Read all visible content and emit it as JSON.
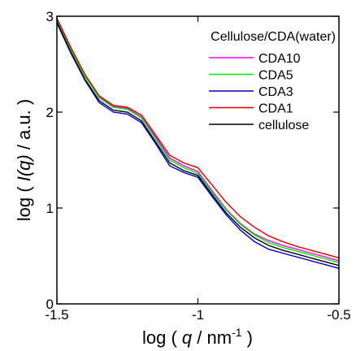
{
  "chart_data": {
    "type": "line",
    "title": "",
    "annotation": "Cellulose/CDA(water)",
    "xlabel": {
      "prefix": "log ( ",
      "var": "q",
      "mid": " / nm",
      "sup": "-1",
      "suffix": " )"
    },
    "ylabel": {
      "prefix": "log ( ",
      "var": "I(q)",
      "suffix": " / a.u. )"
    },
    "xlim": [
      -1.5,
      -0.5
    ],
    "ylim": [
      0,
      3
    ],
    "xticks": [
      -1.5,
      -1,
      -0.5
    ],
    "xtick_labels": [
      "-1.5",
      "-1",
      "-0.5"
    ],
    "yticks": [
      0,
      1,
      2,
      3
    ],
    "ytick_labels": [
      "0",
      "1",
      "2",
      "3"
    ],
    "grid": false,
    "legend_position": "top-right",
    "series": [
      {
        "name": "CDA10",
        "color": "#ff00ff",
        "x": [
          -1.5,
          -1.45,
          -1.4,
          -1.35,
          -1.3,
          -1.25,
          -1.2,
          -1.15,
          -1.1,
          -1.05,
          -1,
          -0.95,
          -0.9,
          -0.85,
          -0.8,
          -0.75,
          -0.7,
          -0.65,
          -0.6,
          -0.55,
          -0.5
        ],
        "y": [
          2.97,
          2.65,
          2.38,
          2.16,
          2.06,
          2.04,
          1.95,
          1.74,
          1.52,
          1.44,
          1.38,
          1.18,
          0.99,
          0.84,
          0.73,
          0.66,
          0.61,
          0.57,
          0.53,
          0.49,
          0.45
        ]
      },
      {
        "name": "CDA5",
        "color": "#00ee00",
        "x": [
          -1.5,
          -1.45,
          -1.4,
          -1.35,
          -1.3,
          -1.25,
          -1.2,
          -1.15,
          -1.1,
          -1.05,
          -1,
          -0.95,
          -0.9,
          -0.85,
          -0.8,
          -0.75,
          -0.7,
          -0.65,
          -0.6,
          -0.55,
          -0.5
        ],
        "y": [
          2.95,
          2.64,
          2.37,
          2.15,
          2.05,
          2.03,
          1.94,
          1.72,
          1.5,
          1.42,
          1.36,
          1.16,
          0.98,
          0.83,
          0.72,
          0.64,
          0.59,
          0.55,
          0.51,
          0.47,
          0.43
        ]
      },
      {
        "name": "CDA3",
        "color": "#0000cc",
        "x": [
          -1.5,
          -1.45,
          -1.4,
          -1.35,
          -1.3,
          -1.25,
          -1.2,
          -1.15,
          -1.1,
          -1.05,
          -1,
          -0.95,
          -0.9,
          -0.85,
          -0.8,
          -0.75,
          -0.7,
          -0.65,
          -0.6,
          -0.55,
          -0.5
        ],
        "y": [
          2.93,
          2.61,
          2.33,
          2.1,
          2.0,
          1.98,
          1.89,
          1.67,
          1.44,
          1.37,
          1.32,
          1.12,
          0.93,
          0.77,
          0.65,
          0.57,
          0.53,
          0.49,
          0.45,
          0.41,
          0.37
        ]
      },
      {
        "name": "CDA1",
        "color": "#dd0000",
        "x": [
          -1.5,
          -1.45,
          -1.4,
          -1.35,
          -1.3,
          -1.25,
          -1.2,
          -1.15,
          -1.1,
          -1.05,
          -1,
          -0.95,
          -0.9,
          -0.85,
          -0.8,
          -0.75,
          -0.7,
          -0.65,
          -0.6,
          -0.55,
          -0.5
        ],
        "y": [
          2.98,
          2.67,
          2.39,
          2.17,
          2.07,
          2.05,
          1.97,
          1.76,
          1.55,
          1.47,
          1.42,
          1.24,
          1.06,
          0.91,
          0.8,
          0.71,
          0.65,
          0.6,
          0.56,
          0.52,
          0.48
        ]
      },
      {
        "name": "cellulose",
        "color": "#000000",
        "x": [
          -1.5,
          -1.45,
          -1.4,
          -1.35,
          -1.3,
          -1.25,
          -1.2,
          -1.15,
          -1.1,
          -1.05,
          -1,
          -0.95,
          -0.9,
          -0.85,
          -0.8,
          -0.75,
          -0.7,
          -0.65,
          -0.6,
          -0.55,
          -0.5
        ],
        "y": [
          2.94,
          2.62,
          2.34,
          2.12,
          2.02,
          2.0,
          1.91,
          1.69,
          1.47,
          1.39,
          1.34,
          1.14,
          0.95,
          0.8,
          0.69,
          0.61,
          0.56,
          0.52,
          0.48,
          0.44,
          0.4
        ]
      }
    ]
  }
}
